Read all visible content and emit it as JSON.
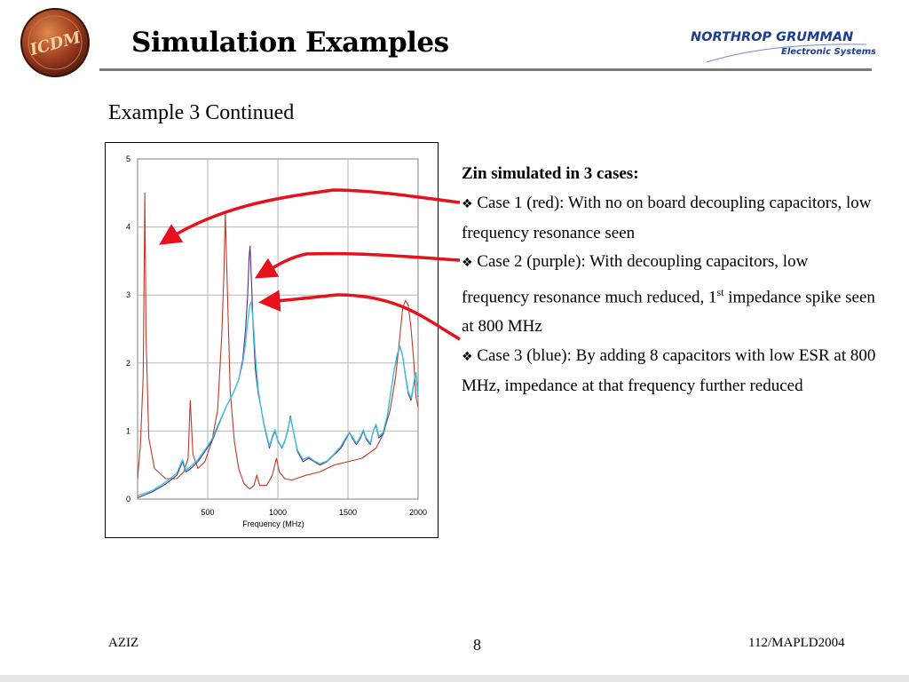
{
  "slide": {
    "title": "Simulation Examples",
    "subtitle": "Example 3 Continued",
    "logo_left_text": "ICDM",
    "logo_right_line1": "NORTHROP GRUMMAN",
    "logo_right_line2": "Electronic Systems"
  },
  "text": {
    "heading": "Zin simulated in 3 cases:",
    "bullet_symbol": "❖",
    "case1": "Case 1 (red): With no on board decoupling capacitors, low frequency resonance seen",
    "case2_a": "Case 2 (purple): With decoupling capacitors, low frequency resonance much reduced, 1",
    "case2_sup": "st",
    "case2_b": " impedance spike seen at 800 MHz",
    "case3": "Case 3 (blue): By adding 8 capacitors with low ESR at 800 MHz, impedance at that frequency further reduced"
  },
  "footer": {
    "left": "AZIZ",
    "center": "8",
    "right": "112/MAPLD2004"
  },
  "colors": {
    "red": "#c0392b",
    "purple": "#5b2a86",
    "cyan": "#33c6d9",
    "arrow": "#e8101a",
    "grid": "#b5b5b5"
  },
  "chart_data": {
    "type": "line",
    "title": "",
    "xlabel": "Frequency (MHz)",
    "ylabel": "",
    "xlim": [
      0,
      2000
    ],
    "ylim": [
      0,
      5
    ],
    "x_ticks": [
      500,
      1000,
      1500,
      2000
    ],
    "y_ticks": [
      0,
      1,
      2,
      3,
      4,
      5
    ],
    "grid": true,
    "series": [
      {
        "name": "Case 1 (red)",
        "color": "#c0392b",
        "points": [
          [
            0,
            0.3
          ],
          [
            20,
            0.8
          ],
          [
            40,
            1.8
          ],
          [
            52,
            4.5
          ],
          [
            60,
            2.4
          ],
          [
            80,
            0.9
          ],
          [
            120,
            0.45
          ],
          [
            200,
            0.3
          ],
          [
            280,
            0.3
          ],
          [
            330,
            0.4
          ],
          [
            360,
            0.6
          ],
          [
            375,
            1.45
          ],
          [
            395,
            0.65
          ],
          [
            430,
            0.45
          ],
          [
            480,
            0.55
          ],
          [
            530,
            0.85
          ],
          [
            570,
            1.3
          ],
          [
            600,
            2.4
          ],
          [
            615,
            3.3
          ],
          [
            625,
            4.2
          ],
          [
            640,
            3.1
          ],
          [
            660,
            1.6
          ],
          [
            690,
            0.85
          ],
          [
            720,
            0.45
          ],
          [
            760,
            0.22
          ],
          [
            800,
            0.15
          ],
          [
            830,
            0.2
          ],
          [
            850,
            0.35
          ],
          [
            870,
            0.2
          ],
          [
            920,
            0.2
          ],
          [
            960,
            0.35
          ],
          [
            990,
            0.6
          ],
          [
            1010,
            0.4
          ],
          [
            1050,
            0.3
          ],
          [
            1100,
            0.28
          ],
          [
            1200,
            0.35
          ],
          [
            1300,
            0.4
          ],
          [
            1400,
            0.5
          ],
          [
            1500,
            0.55
          ],
          [
            1600,
            0.6
          ],
          [
            1700,
            0.75
          ],
          [
            1750,
            0.95
          ],
          [
            1800,
            1.3
          ],
          [
            1840,
            1.8
          ],
          [
            1870,
            2.4
          ],
          [
            1890,
            2.8
          ],
          [
            1910,
            2.92
          ],
          [
            1930,
            2.85
          ],
          [
            1950,
            2.5
          ],
          [
            1970,
            2.0
          ],
          [
            1985,
            1.5
          ],
          [
            2000,
            1.35
          ]
        ]
      },
      {
        "name": "Case 2 (purple)",
        "color": "#5b2a86",
        "points": [
          [
            0,
            0.02
          ],
          [
            100,
            0.1
          ],
          [
            200,
            0.22
          ],
          [
            280,
            0.35
          ],
          [
            320,
            0.55
          ],
          [
            345,
            0.4
          ],
          [
            380,
            0.45
          ],
          [
            430,
            0.55
          ],
          [
            480,
            0.7
          ],
          [
            530,
            0.85
          ],
          [
            580,
            1.1
          ],
          [
            630,
            1.35
          ],
          [
            680,
            1.55
          ],
          [
            720,
            1.75
          ],
          [
            750,
            2.05
          ],
          [
            770,
            2.5
          ],
          [
            785,
            3.0
          ],
          [
            795,
            3.55
          ],
          [
            802,
            3.72
          ],
          [
            810,
            3.3
          ],
          [
            825,
            2.5
          ],
          [
            840,
            1.9
          ],
          [
            860,
            1.55
          ],
          [
            880,
            1.35
          ],
          [
            900,
            1.1
          ],
          [
            940,
            0.75
          ],
          [
            960,
            0.9
          ],
          [
            980,
            1.0
          ],
          [
            1000,
            0.85
          ],
          [
            1030,
            0.75
          ],
          [
            1050,
            0.85
          ],
          [
            1070,
            1.0
          ],
          [
            1090,
            1.22
          ],
          [
            1110,
            1.0
          ],
          [
            1140,
            0.7
          ],
          [
            1180,
            0.55
          ],
          [
            1220,
            0.6
          ],
          [
            1260,
            0.55
          ],
          [
            1300,
            0.5
          ],
          [
            1350,
            0.55
          ],
          [
            1400,
            0.65
          ],
          [
            1450,
            0.75
          ],
          [
            1490,
            0.9
          ],
          [
            1510,
            0.98
          ],
          [
            1530,
            0.9
          ],
          [
            1560,
            0.8
          ],
          [
            1590,
            0.9
          ],
          [
            1610,
            1.0
          ],
          [
            1630,
            0.88
          ],
          [
            1660,
            0.8
          ],
          [
            1680,
            1.0
          ],
          [
            1700,
            1.08
          ],
          [
            1720,
            0.9
          ],
          [
            1750,
            0.95
          ],
          [
            1780,
            1.2
          ],
          [
            1800,
            1.5
          ],
          [
            1830,
            1.9
          ],
          [
            1850,
            2.1
          ],
          [
            1870,
            2.25
          ],
          [
            1890,
            2.1
          ],
          [
            1910,
            1.8
          ],
          [
            1930,
            1.55
          ],
          [
            1950,
            1.45
          ],
          [
            1970,
            1.7
          ],
          [
            1985,
            1.85
          ],
          [
            2000,
            1.5
          ]
        ]
      },
      {
        "name": "Case 3 (blue)",
        "color": "#33c6d9",
        "points": [
          [
            0,
            0.05
          ],
          [
            100,
            0.12
          ],
          [
            200,
            0.25
          ],
          [
            280,
            0.38
          ],
          [
            320,
            0.58
          ],
          [
            345,
            0.42
          ],
          [
            380,
            0.48
          ],
          [
            430,
            0.58
          ],
          [
            480,
            0.72
          ],
          [
            530,
            0.88
          ],
          [
            580,
            1.12
          ],
          [
            630,
            1.35
          ],
          [
            680,
            1.55
          ],
          [
            720,
            1.75
          ],
          [
            750,
            2.0
          ],
          [
            770,
            2.3
          ],
          [
            785,
            2.6
          ],
          [
            800,
            2.85
          ],
          [
            810,
            2.9
          ],
          [
            825,
            2.6
          ],
          [
            840,
            2.1
          ],
          [
            860,
            1.6
          ],
          [
            880,
            1.35
          ],
          [
            900,
            1.12
          ],
          [
            940,
            0.78
          ],
          [
            960,
            0.92
          ],
          [
            980,
            1.02
          ],
          [
            1000,
            0.86
          ],
          [
            1030,
            0.76
          ],
          [
            1050,
            0.86
          ],
          [
            1070,
            1.02
          ],
          [
            1090,
            1.2
          ],
          [
            1110,
            1.0
          ],
          [
            1140,
            0.72
          ],
          [
            1180,
            0.58
          ],
          [
            1220,
            0.62
          ],
          [
            1260,
            0.56
          ],
          [
            1300,
            0.52
          ],
          [
            1350,
            0.56
          ],
          [
            1400,
            0.66
          ],
          [
            1450,
            0.78
          ],
          [
            1490,
            0.92
          ],
          [
            1510,
            0.98
          ],
          [
            1530,
            0.92
          ],
          [
            1560,
            0.82
          ],
          [
            1590,
            0.92
          ],
          [
            1610,
            1.02
          ],
          [
            1630,
            0.9
          ],
          [
            1660,
            0.82
          ],
          [
            1680,
            1.0
          ],
          [
            1700,
            1.1
          ],
          [
            1720,
            0.92
          ],
          [
            1750,
            0.98
          ],
          [
            1780,
            1.22
          ],
          [
            1800,
            1.5
          ],
          [
            1830,
            1.9
          ],
          [
            1850,
            2.12
          ],
          [
            1870,
            2.25
          ],
          [
            1890,
            2.1
          ],
          [
            1910,
            1.82
          ],
          [
            1930,
            1.58
          ],
          [
            1950,
            1.48
          ],
          [
            1970,
            1.72
          ],
          [
            1985,
            1.86
          ],
          [
            2000,
            1.52
          ]
        ]
      }
    ]
  }
}
